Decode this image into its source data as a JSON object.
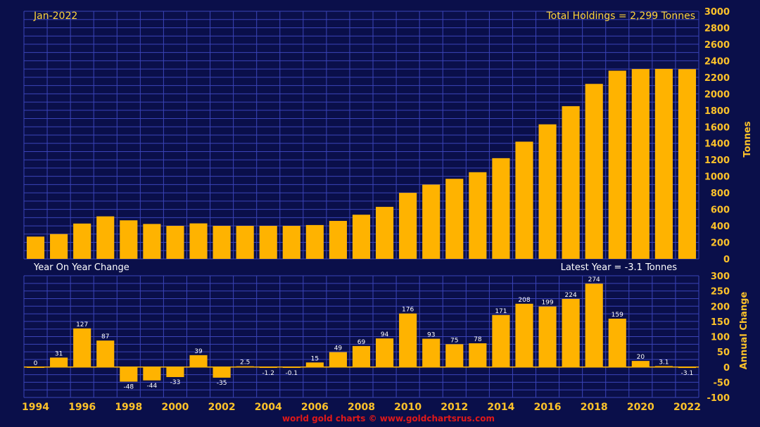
{
  "chart_data": [
    {
      "type": "bar",
      "title": "Jan-2022",
      "annotation": "Total Holdings = 2,299 Tonnes",
      "ylabel": "Tonnes",
      "ylim": [
        0,
        3000
      ],
      "yticks": [
        0,
        200,
        400,
        600,
        800,
        1000,
        1200,
        1400,
        1600,
        1800,
        2000,
        2200,
        2400,
        2600,
        2800,
        3000
      ],
      "grid": true,
      "bar_color": "#ffb300",
      "categories": [
        "1994",
        "1995",
        "1996",
        "1997",
        "1998",
        "1999",
        "2000",
        "2001",
        "2002",
        "2003",
        "2004",
        "2005",
        "2006",
        "2007",
        "2008",
        "2009",
        "2010",
        "2011",
        "2012",
        "2013",
        "2014",
        "2015",
        "2016",
        "2017",
        "2018",
        "2019",
        "2020",
        "2021",
        "2022"
      ],
      "values": [
        270,
        301,
        428,
        515,
        467,
        423,
        400,
        430,
        400,
        400,
        400,
        400,
        410,
        460,
        535,
        630,
        800,
        900,
        970,
        1050,
        1220,
        1420,
        1630,
        1850,
        2120,
        2280,
        2300,
        2302,
        2299
      ]
    },
    {
      "type": "bar",
      "title": "Year On Year Change",
      "annotation": "Latest Year = -3.1 Tonnes",
      "ylabel": "Annual Change",
      "ylim": [
        -100,
        300
      ],
      "yticks": [
        -100,
        -50,
        0,
        50,
        100,
        150,
        200,
        250,
        300
      ],
      "grid": true,
      "bar_color": "#ffb300",
      "categories": [
        "1994",
        "1995",
        "1996",
        "1997",
        "1998",
        "1999",
        "2000",
        "2001",
        "2002",
        "2003",
        "2004",
        "2005",
        "2006",
        "2007",
        "2008",
        "2009",
        "2010",
        "2011",
        "2012",
        "2013",
        "2014",
        "2015",
        "2016",
        "2017",
        "2018",
        "2019",
        "2020",
        "2021",
        "2022"
      ],
      "values": [
        0,
        31,
        127,
        87,
        -48,
        -44,
        -33,
        39,
        -35,
        2.5,
        -1.2,
        -0.1,
        15,
        49,
        69,
        94,
        176,
        93,
        75,
        78,
        171,
        208,
        199,
        224,
        274,
        159,
        20,
        3.1,
        -3.1
      ],
      "data_labels": [
        "0",
        "31",
        "127",
        "87",
        "-48",
        "-44",
        "-33",
        "39",
        "-35",
        "2.5",
        "-1.2",
        "-0.1",
        "15",
        "49",
        "69",
        "94",
        "176",
        "93",
        "75",
        "78",
        "171",
        "208",
        "199",
        "224",
        "274",
        "159",
        "20",
        "3.1",
        "-3.1"
      ]
    }
  ],
  "x_tick_labels": [
    "1994",
    "1996",
    "1998",
    "2000",
    "2002",
    "2004",
    "2006",
    "2008",
    "2010",
    "2012",
    "2014",
    "2016",
    "2018",
    "2020",
    "2022"
  ],
  "footer": "world gold charts © www.goldchartsrus.com"
}
